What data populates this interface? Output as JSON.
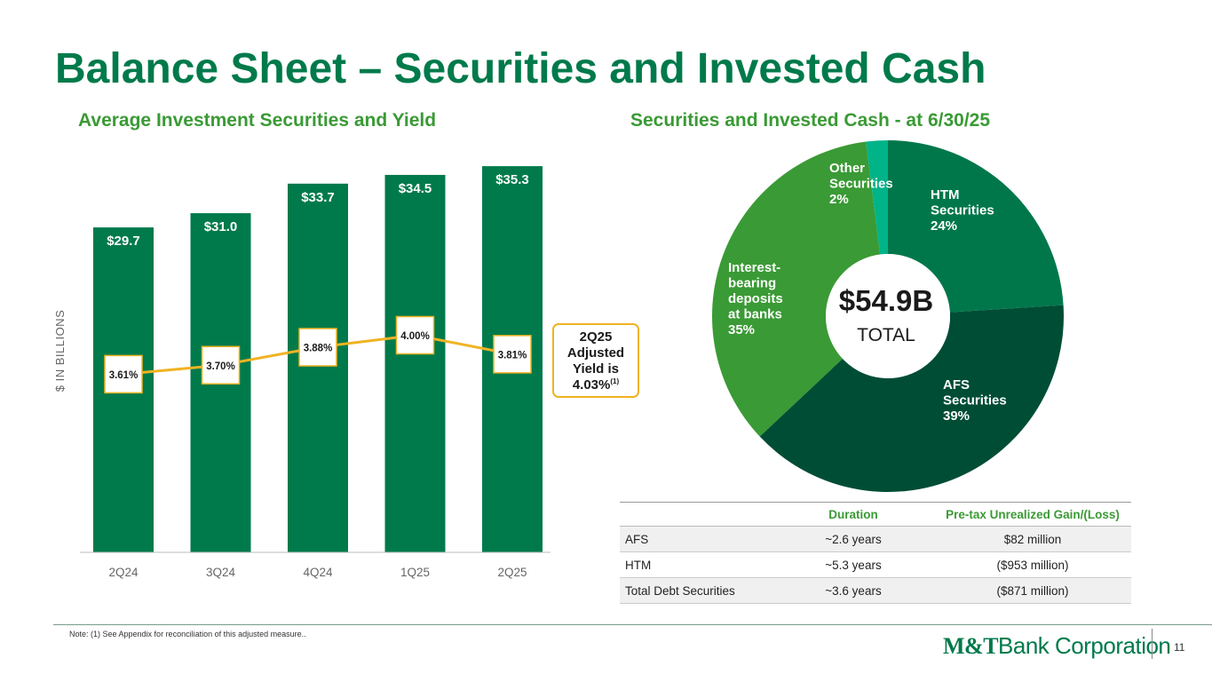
{
  "page": {
    "title": "Balance Sheet – Securities and Invested Cash",
    "page_number": "11",
    "note": "Note: (1) See Appendix for reconciliation of this adjusted measure..",
    "logo": {
      "mark": "M&T",
      "text": "Bank Corporation"
    }
  },
  "colors": {
    "title": "#007a4b",
    "subtitle": "#3a9a35",
    "bar": "#007a4b",
    "yield_line": "#f0b323",
    "htm": "#00774b",
    "afs": "#004d35",
    "ibd": "#3a9a35",
    "other": "#00b388"
  },
  "callout": {
    "line1": "2Q25",
    "line2": "Adjusted",
    "line3": "Yield is",
    "value": "4.03%",
    "footnote": "(1)"
  },
  "chart_data": [
    {
      "type": "bar",
      "title": "Average Investment Securities and Yield",
      "ylabel": "$ IN BILLIONS",
      "categories": [
        "2Q24",
        "3Q24",
        "4Q24",
        "1Q25",
        "2Q25"
      ],
      "series": [
        {
          "name": "Average Investment Securities",
          "values": [
            29.7,
            31.0,
            33.7,
            34.5,
            35.3
          ],
          "labels": [
            "$29.7",
            "$31.0",
            "$33.7",
            "$34.5",
            "$35.3"
          ]
        },
        {
          "name": "Yield",
          "type": "line",
          "values": [
            3.61,
            3.7,
            3.88,
            4.0,
            3.81
          ],
          "labels": [
            "3.61%",
            "3.70%",
            "3.88%",
            "4.00%",
            "3.81%"
          ]
        }
      ],
      "ylim": [
        0,
        37.5
      ]
    },
    {
      "type": "pie",
      "title": "Securities and Invested Cash - at 6/30/25",
      "center_value": "$54.9B",
      "center_label": "TOTAL",
      "slices": [
        {
          "name": "HTM Securities",
          "lines": [
            "HTM",
            "Securities"
          ],
          "value": 24,
          "label": "24%",
          "color": "#00774b"
        },
        {
          "name": "AFS Securities",
          "lines": [
            "AFS",
            "Securities"
          ],
          "value": 39,
          "label": "39%",
          "color": "#004d35"
        },
        {
          "name": "Interest-bearing deposits at banks",
          "lines": [
            "Interest-",
            "bearing",
            "deposits",
            "at banks"
          ],
          "value": 35,
          "label": "35%",
          "color": "#3a9a35"
        },
        {
          "name": "Other Securities",
          "lines": [
            "Other",
            "Securities"
          ],
          "value": 2,
          "label": "2%",
          "color": "#00b388"
        }
      ]
    }
  ],
  "table": {
    "headers": [
      "",
      "Duration",
      "Pre-tax Unrealized Gain/(Loss)"
    ],
    "rows": [
      {
        "label": "AFS",
        "duration": "~2.6 years",
        "gain": "$82 million"
      },
      {
        "label": "HTM",
        "duration": "~5.3 years",
        "gain": "($953 million)"
      },
      {
        "label": "Total Debt Securities",
        "duration": "~3.6 years",
        "gain": "($871 million)"
      }
    ]
  }
}
